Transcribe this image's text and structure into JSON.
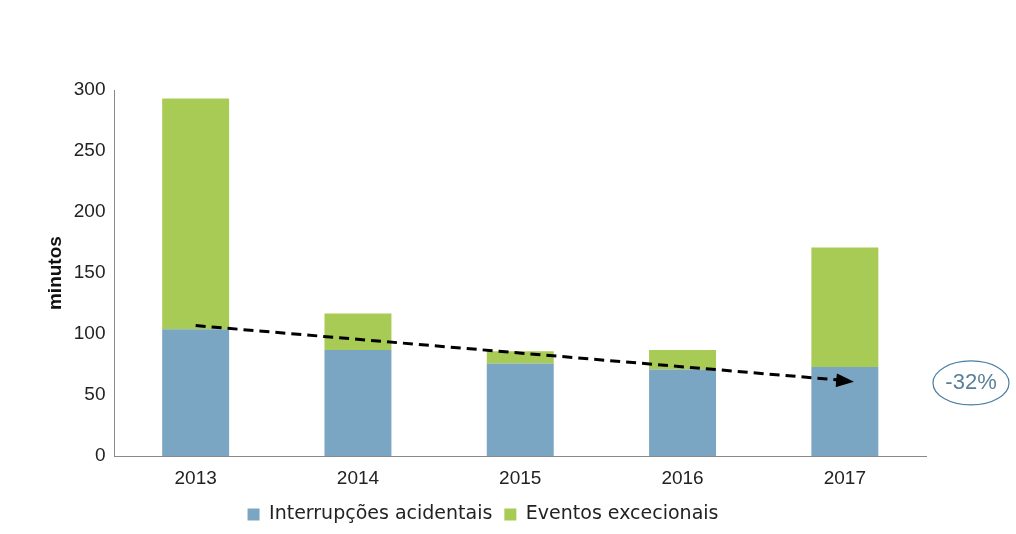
{
  "chart_data": {
    "type": "bar",
    "ylabel": "minutos",
    "categories": [
      "2013",
      "2014",
      "2015",
      "2016",
      "2017"
    ],
    "stacked": true,
    "series": [
      {
        "name": "Interrupções acidentais",
        "color": "#7ba6c3",
        "values": [
          104,
          87,
          76,
          71,
          73
        ]
      },
      {
        "name": "Eventos excecionais",
        "color": "#a8cb55",
        "values": [
          189,
          30,
          10,
          16,
          98
        ]
      },
      {
        "type": "line",
        "color": "#000000",
        "line_style": "dashed",
        "values": [
          107,
          null,
          null,
          null,
          62
        ]
      }
    ],
    "ylim": [
      0,
      300
    ],
    "yticks": [
      0,
      50,
      100,
      150,
      200,
      250,
      300
    ],
    "grid": false,
    "legend": "bottom",
    "annotations": [
      "-32%"
    ]
  }
}
